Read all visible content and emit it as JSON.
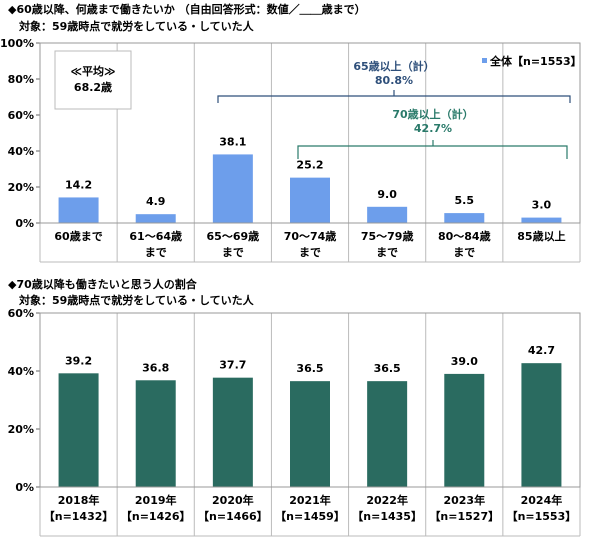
{
  "chart_data": [
    {
      "type": "bar",
      "title": "◆60歳以降、何歳まで働きたいか （自由回答形式：数値／＿＿歳まで）",
      "subtitle": "対象：59歳時点で就労をしている・していた人",
      "categories": [
        [
          "60歳まで"
        ],
        [
          "61～64歳",
          "まで"
        ],
        [
          "65～69歳",
          "まで"
        ],
        [
          "70～74歳",
          "まで"
        ],
        [
          "75～79歳",
          "まで"
        ],
        [
          "80～84歳",
          "まで"
        ],
        [
          "85歳以上"
        ]
      ],
      "series": [
        {
          "name": "全体【n=1553】",
          "values": [
            14.2,
            4.9,
            38.1,
            25.2,
            9.0,
            5.5,
            3.0
          ]
        }
      ],
      "ylim": [
        0,
        100
      ],
      "yticks": [
        "0%",
        "20%",
        "40%",
        "60%",
        "80%",
        "100%"
      ],
      "grid": "vertical separators",
      "legend": "top-right",
      "color": "#6d9eeb",
      "annotations": {
        "average_label": "≪平均≫",
        "average_value": "68.2歳",
        "bracket_65_label": "65歳以上（計）",
        "bracket_65_value": "80.8%",
        "bracket_70_label": "70歳以上（計）",
        "bracket_70_value": "42.7%",
        "bracket_65_color": "#2e4f7a",
        "bracket_70_color": "#2a7a6a"
      }
    },
    {
      "type": "bar",
      "title": "◆70歳以降も働きたいと思う人の割合",
      "subtitle": "対象：59歳時点で就労をしている・していた人",
      "categories": [
        [
          "2018年",
          "【n=1432】"
        ],
        [
          "2019年",
          "【n=1426】"
        ],
        [
          "2020年",
          "【n=1466】"
        ],
        [
          "2021年",
          "【n=1459】"
        ],
        [
          "2022年",
          "【n=1435】"
        ],
        [
          "2023年",
          "【n=1527】"
        ],
        [
          "2024年",
          "【n=1553】"
        ]
      ],
      "values": [
        39.2,
        36.8,
        37.7,
        36.5,
        36.5,
        39.0,
        42.7
      ],
      "ylim": [
        0,
        60
      ],
      "yticks": [
        "0%",
        "20%",
        "40%",
        "60%"
      ],
      "grid": "vertical separators",
      "color": "#2a6b60"
    }
  ]
}
